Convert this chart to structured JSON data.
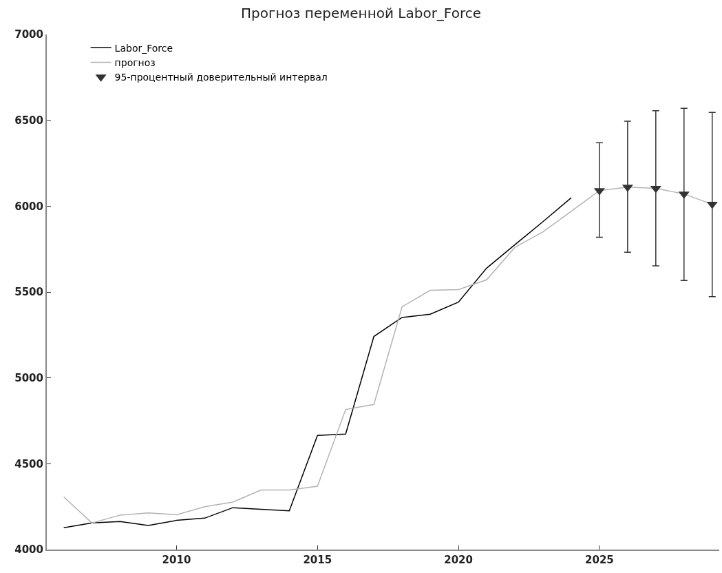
{
  "chart_data": {
    "type": "line",
    "title": "Прогноз переменной Labor_Force",
    "xlim": [
      2005.4,
      2029.25
    ],
    "xticks": [
      2010,
      2015,
      2020,
      2025
    ],
    "ylim": [
      4000,
      7000
    ],
    "yticks": [
      4000,
      4500,
      5000,
      5500,
      6000,
      6500,
      7000
    ],
    "legend": "top left",
    "series": [
      {
        "name": "Labor_Force",
        "color": "#000000",
        "x": [
          2006,
          2007,
          2008,
          2009,
          2010,
          2011,
          2012,
          2013,
          2014,
          2015,
          2016,
          2017,
          2018,
          2019,
          2020,
          2021,
          2022,
          2023,
          2024
        ],
        "values": [
          4127,
          4155,
          4163,
          4140,
          4170,
          4183,
          4244,
          4235,
          4226,
          4665,
          4673,
          5241,
          5352,
          5371,
          5441,
          5639,
          5775,
          5910,
          6049
        ]
      },
      {
        "name": "прогноз",
        "color": "#b3b3b3",
        "x": [
          2006,
          2007,
          2008,
          2009,
          2010,
          2011,
          2012,
          2013,
          2014,
          2015,
          2016,
          2017,
          2018,
          2019,
          2020,
          2021,
          2022,
          2023,
          2024,
          2025,
          2026,
          2027,
          2028,
          2029
        ],
        "values": [
          4307,
          4155,
          4201,
          4214,
          4203,
          4250,
          4277,
          4347,
          4347,
          4369,
          4816,
          4845,
          5414,
          5510,
          5514,
          5571,
          5760,
          5850,
          5970,
          6091,
          6111,
          6104,
          6071,
          6011
        ]
      },
      {
        "name": "95-процентный доверительный интервал",
        "color": "#333333",
        "type": "scatter",
        "marker": "triangle",
        "x": [
          2025,
          2026,
          2027,
          2028,
          2029
        ],
        "values": [
          6091,
          6111,
          6104,
          6071,
          6011
        ],
        "errors": [
          [
            5819,
            6369
          ],
          [
            5732,
            6495
          ],
          [
            5652,
            6556
          ],
          [
            5567,
            6570
          ],
          [
            5473,
            6546
          ]
        ]
      }
    ]
  }
}
